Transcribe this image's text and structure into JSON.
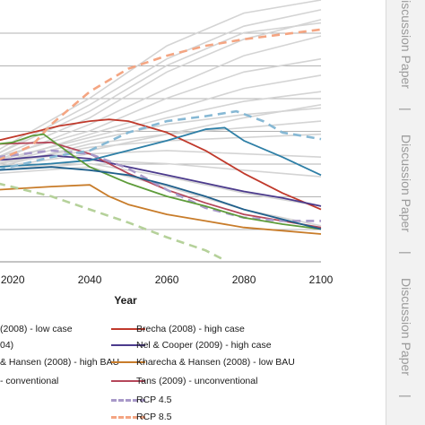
{
  "side_panel": {
    "label": "Discussion Paper",
    "separator": "|",
    "repeats": [
      {
        "label": "Discussion Paper"
      },
      {
        "label": "Discussion Paper"
      },
      {
        "label": "Discussion Paper"
      }
    ],
    "background": "#f2f2f2",
    "text_color": "#9a9a9a"
  },
  "chart_data": {
    "type": "line",
    "xlabel": "Year",
    "x_ticks": [
      "2020",
      "2040",
      "2060",
      "2080",
      "2100"
    ],
    "xlim": [
      2016,
      2100
    ],
    "ylim": [
      0,
      8
    ],
    "grid": true,
    "grid_color": "#9a9a9a",
    "background_lines_color": "#d4d4d4",
    "highlighted_series": [
      {
        "key": "brecha_high",
        "name": "Brecha (2008) - high case",
        "color": "#c0392b",
        "dash": "solid",
        "x": [
          2016,
          2025,
          2032,
          2040,
          2045,
          2050,
          2060,
          2070,
          2080,
          2090,
          2100
        ],
        "y": [
          3.7,
          3.95,
          4.15,
          4.3,
          4.35,
          4.3,
          3.95,
          3.4,
          2.7,
          2.1,
          1.6
        ]
      },
      {
        "key": "nel_high",
        "name": "Nel & Cooper (2009) - high case",
        "color": "#4b3a8c",
        "dash": "solid",
        "x": [
          2016,
          2030,
          2040,
          2050,
          2060,
          2070,
          2080,
          2090,
          2100
        ],
        "y": [
          3.1,
          3.25,
          3.15,
          2.9,
          2.65,
          2.4,
          2.15,
          1.95,
          1.7
        ]
      },
      {
        "key": "kharecha_low",
        "name": "Kharecha & Hansen (2008) - low BAU",
        "color": "#c87c2a",
        "dash": "solid",
        "x": [
          2016,
          2030,
          2040,
          2045,
          2050,
          2060,
          2070,
          2080,
          2090,
          2100
        ],
        "y": [
          2.2,
          2.3,
          2.35,
          2.0,
          1.75,
          1.45,
          1.25,
          1.05,
          0.95,
          0.85
        ]
      },
      {
        "key": "tans_unconv",
        "name": "Tans (2009) - unconventional",
        "color": "#b5475a",
        "dash": "solid",
        "x": [
          2016,
          2030,
          2040,
          2050,
          2060,
          2070,
          2080,
          2090,
          2100
        ],
        "y": [
          3.6,
          3.65,
          3.3,
          2.7,
          2.2,
          1.8,
          1.45,
          1.25,
          1.05
        ]
      },
      {
        "key": "rcp45",
        "name": "RCP 4.5",
        "color": "#a899c9",
        "dash": "dashed",
        "x": [
          2016,
          2030,
          2040,
          2050,
          2060,
          2070,
          2080,
          2090,
          2100
        ],
        "y": [
          3.2,
          3.4,
          3.3,
          2.85,
          2.2,
          1.65,
          1.35,
          1.25,
          1.25
        ]
      },
      {
        "key": "rcp85",
        "name": "RCP 8.5",
        "color": "#f4a582",
        "dash": "dashed",
        "x": [
          2016,
          2025,
          2030,
          2040,
          2050,
          2060,
          2070,
          2080,
          2090,
          2100
        ],
        "y": [
          3.1,
          3.55,
          4.2,
          5.2,
          5.9,
          6.3,
          6.6,
          6.8,
          6.95,
          7.1
        ]
      },
      {
        "key": "teal_a",
        "name": "",
        "color": "#2e7fa6",
        "dash": "solid",
        "x": [
          2016,
          2030,
          2040,
          2050,
          2060,
          2070,
          2075,
          2080,
          2090,
          2100
        ],
        "y": [
          2.9,
          3.0,
          3.1,
          3.4,
          3.7,
          4.05,
          4.1,
          3.7,
          3.2,
          2.65
        ]
      },
      {
        "key": "lightblue_dash",
        "name": "",
        "color": "#86b8d4",
        "dash": "dashed",
        "x": [
          2016,
          2030,
          2040,
          2050,
          2060,
          2070,
          2078,
          2085,
          2090,
          2100
        ],
        "y": [
          2.8,
          3.2,
          3.4,
          3.95,
          4.3,
          4.45,
          4.6,
          4.3,
          3.95,
          3.75
        ]
      },
      {
        "key": "green_bump",
        "name": "",
        "color": "#5e9c3a",
        "dash": "solid",
        "x": [
          2016,
          2020,
          2025,
          2028,
          2035,
          2040,
          2050,
          2060,
          2070,
          2080,
          2090,
          2100
        ],
        "y": [
          3.6,
          3.65,
          3.85,
          3.9,
          3.3,
          2.9,
          2.4,
          2.0,
          1.7,
          1.35,
          1.15,
          1.0
        ]
      },
      {
        "key": "green_dash",
        "name": "",
        "color": "#b5d19a",
        "dash": "dashed",
        "x": [
          2016,
          2030,
          2040,
          2050,
          2060,
          2070,
          2075
        ],
        "y": [
          2.4,
          2.0,
          1.6,
          1.2,
          0.75,
          0.35,
          0.05
        ]
      },
      {
        "key": "navy_flat",
        "name": "",
        "color": "#1f5f8b",
        "dash": "solid",
        "x": [
          2016,
          2030,
          2040,
          2050,
          2060,
          2070,
          2080,
          2090,
          2100
        ],
        "y": [
          2.8,
          2.9,
          2.8,
          2.65,
          2.35,
          2.0,
          1.6,
          1.3,
          1.0
        ]
      }
    ],
    "background_series": [
      {
        "x": [
          2016,
          2040,
          2060,
          2080,
          2100
        ],
        "y": [
          3.3,
          4.8,
          6.2,
          7.2,
          7.7
        ]
      },
      {
        "x": [
          2016,
          2040,
          2060,
          2080,
          2100
        ],
        "y": [
          3.2,
          4.4,
          5.8,
          6.8,
          7.4
        ]
      },
      {
        "x": [
          2016,
          2040,
          2060,
          2080,
          2100
        ],
        "y": [
          3.1,
          4.2,
          5.3,
          6.3,
          6.9
        ]
      },
      {
        "x": [
          2016,
          2040,
          2060,
          2080,
          2100
        ],
        "y": [
          3.2,
          4.0,
          5.0,
          5.8,
          6.2
        ]
      },
      {
        "x": [
          2016,
          2040,
          2060,
          2080,
          2100
        ],
        "y": [
          3.0,
          3.9,
          4.6,
          5.3,
          5.7
        ]
      },
      {
        "x": [
          2016,
          2040,
          2060,
          2080,
          2100
        ],
        "y": [
          3.1,
          3.8,
          4.4,
          4.9,
          5.2
        ]
      },
      {
        "x": [
          2016,
          2040,
          2060,
          2080,
          2100
        ],
        "y": [
          3.0,
          3.7,
          4.2,
          4.5,
          4.7
        ]
      },
      {
        "x": [
          2016,
          2040,
          2060,
          2080,
          2100
        ],
        "y": [
          2.9,
          3.6,
          3.9,
          4.1,
          4.3
        ]
      },
      {
        "x": [
          2016,
          2040,
          2060,
          2080,
          2100
        ],
        "y": [
          3.0,
          3.5,
          3.7,
          3.8,
          3.9
        ]
      },
      {
        "x": [
          2016,
          2040,
          2060,
          2080,
          2100
        ],
        "y": [
          2.9,
          3.3,
          3.4,
          3.3,
          3.2
        ]
      },
      {
        "x": [
          2016,
          2040,
          2060,
          2080,
          2100
        ],
        "y": [
          2.8,
          3.1,
          3.0,
          2.8,
          2.6
        ]
      },
      {
        "x": [
          2016,
          2040,
          2060,
          2080,
          2100
        ],
        "y": [
          2.8,
          3.0,
          2.6,
          2.1,
          1.7
        ]
      },
      {
        "x": [
          2016,
          2040,
          2060,
          2080,
          2100
        ],
        "y": [
          2.7,
          2.9,
          2.3,
          1.6,
          1.1
        ]
      },
      {
        "x": [
          2016,
          2040,
          2060,
          2080,
          2100
        ],
        "y": [
          3.4,
          5.0,
          6.6,
          7.6,
          8.0
        ]
      },
      {
        "x": [
          2016,
          2040,
          2060,
          2080,
          2100
        ],
        "y": [
          3.3,
          4.6,
          6.0,
          7.0,
          7.3
        ]
      },
      {
        "x": [
          2016,
          2040,
          2060,
          2080,
          2100
        ],
        "y": [
          3.0,
          3.4,
          3.9,
          4.4,
          4.8
        ]
      }
    ],
    "legend": [
      {
        "label": "(2008) - low case",
        "color": "#c0392b",
        "dash": "solid",
        "swatch": false
      },
      {
        "label": "Brecha (2008) - high case",
        "color": "#c0392b",
        "dash": "solid",
        "swatch": true
      },
      {
        "label": "04)",
        "color": "#4b3a8c",
        "dash": "solid",
        "swatch": false
      },
      {
        "label": "Nel & Cooper (2009) - high case",
        "color": "#4b3a8c",
        "dash": "solid",
        "swatch": true
      },
      {
        "label": "& Hansen (2008) - high BAU",
        "color": "#c87c2a",
        "dash": "solid",
        "swatch": false
      },
      {
        "label": "Kharecha & Hansen (2008) - low BAU",
        "color": "#c87c2a",
        "dash": "solid",
        "swatch": true
      },
      {
        "label": "- conventional",
        "color": "#b5475a",
        "dash": "solid",
        "swatch": false
      },
      {
        "label": "Tans (2009) - unconventional",
        "color": "#b5475a",
        "dash": "solid",
        "swatch": true
      },
      {
        "label": "RCP 4.5",
        "color": "#a899c9",
        "dash": "dashed",
        "swatch": true
      },
      {
        "label": "RCP 8.5",
        "color": "#f4a582",
        "dash": "dashed",
        "swatch": true
      }
    ]
  }
}
